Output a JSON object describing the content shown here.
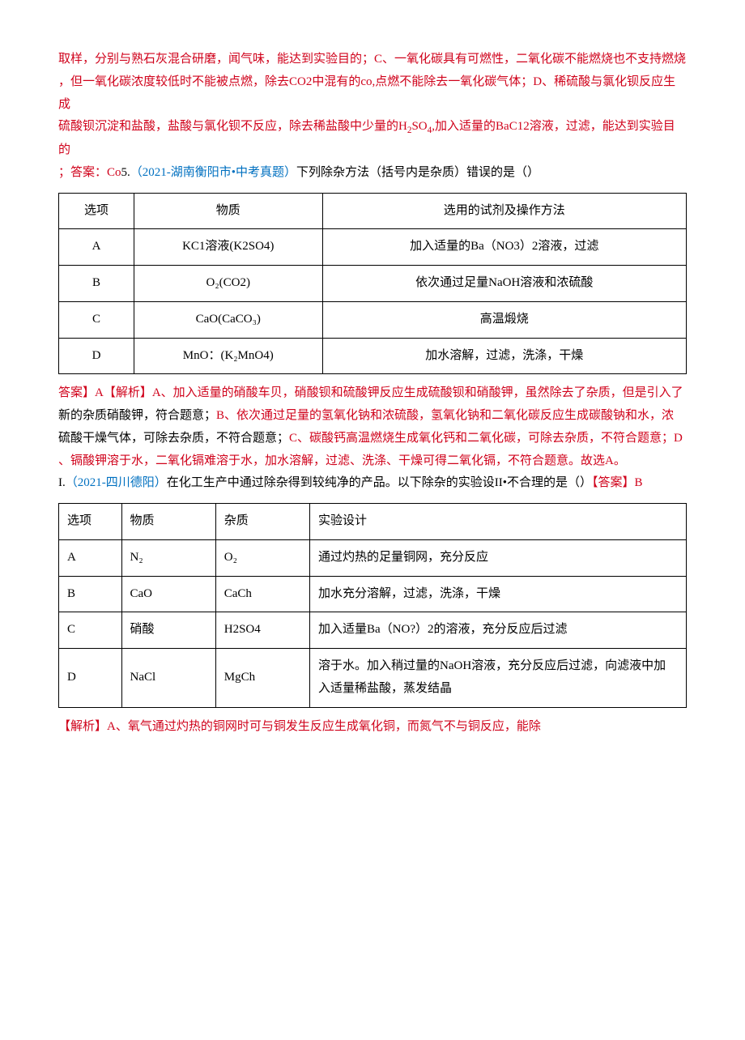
{
  "colors": {
    "red": "#d0021b",
    "blue": "#0070c0",
    "black": "#000000",
    "border": "#000000",
    "background": "#ffffff"
  },
  "typography": {
    "body_fontsize": 15,
    "line_height": 1.85,
    "font_family": "SimSun"
  },
  "intro": {
    "line1_red": "取样，分别与熟石灰混合研磨，闻气味，能达到实验目的；C、一氧化碳具有可燃性，二氧化碳不能燃烧也不支持燃烧",
    "line2_red": "，但一氧化碳浓度较低时不能被点燃，除去CO2中混有的co,点燃不能除去一氧化碳气体；D、稀硫酸与氯化钡反应生成",
    "line3_red_a": "硫酸钡沉淀和盐酸，盐酸与氯化钡不反应，除去稀盐酸中少量的H",
    "line3_red_b": "2",
    "line3_red_c": "SO",
    "line3_red_d": "4",
    "line3_red_e": ",加入适量的BaC12溶液，过滤，能达到实验目的",
    "line4_red_a": "；答案：Co",
    "line4_black_a": "5.",
    "line4_blue": "（2021-湖南衡阳市•中考真题）",
    "line4_black_b": "下列除杂方法（括号内是杂质）错误的是（）"
  },
  "table1": {
    "headers": [
      "选项",
      "物质",
      "选用的试剂及操作方法"
    ],
    "rows": [
      [
        "A",
        "KC1溶液(K2SO4)",
        "加入适量的Ba（NO3）2溶液，过滤"
      ],
      [
        "B",
        "O₂(CO2)",
        "依次通过足量NaOH溶液和浓硫酸"
      ],
      [
        "C",
        "CaO(CaCO₃)",
        "高温煅烧"
      ],
      [
        "D",
        "MnO：(K₂MnO4)",
        "加水溶解，过滤，洗涤，干燥"
      ]
    ]
  },
  "mid": {
    "l1_red": "答案】A【解析】A、加入适量的硝酸车贝，硝酸钡和硫酸钾反应生成硫酸钡和硝酸钾，虽然除去了杂质，但是引入了",
    "l2_black": "新的杂质硝酸钾，符合题意；",
    "l2_red": "B、依次通过足量的氢氧化钠和浓硫酸，氢氧化钠和二氧化碳反应生成碳酸钠和水，浓",
    "l3_black": "硫酸干燥气体，可除去杂质，不符合题意；",
    "l3_red_a": "C、碳酸钙高温燃烧生成氧化钙和二氧化碳，可除去杂质，不符合题意；D",
    "l4_red": "、镉酸钾溶于水，二氧化镉难溶于水，加水溶解，过滤、洗涤、干燥可得二氧化镉，不符合题意。故选A。",
    "l5_black_a": "I.",
    "l5_blue": "（2021-四川德阳）",
    "l5_black_b": "在化工生产中通过除杂得到较纯净的产品。以下除杂的实验设II•不合理的是（）",
    "l5_red": "【答案】B"
  },
  "table2": {
    "headers": [
      "选项",
      "物质",
      "杂质",
      "实验设计"
    ],
    "rows": [
      [
        "A",
        "N₂",
        "O₂",
        "通过灼热的足量铜网，充分反应"
      ],
      [
        "B",
        "CaO",
        "CaCh",
        "加水充分溶解，过滤，洗涤，干燥"
      ],
      [
        "C",
        "硝酸",
        "H2SO4",
        "加入适量Ba（NO?）2的溶液，充分反应后过滤"
      ],
      [
        "D",
        "NaCl",
        "MgCh",
        "溶于水。加入稍过量的NaOH溶液，充分反应后过滤，向滤液中加入适量稀盐酸，蒸发结晶"
      ]
    ]
  },
  "tail": {
    "red": "【解析】A、氧气通过灼热的铜网时可与铜发生反应生成氧化铜，而氮气不与铜反应，能除"
  }
}
